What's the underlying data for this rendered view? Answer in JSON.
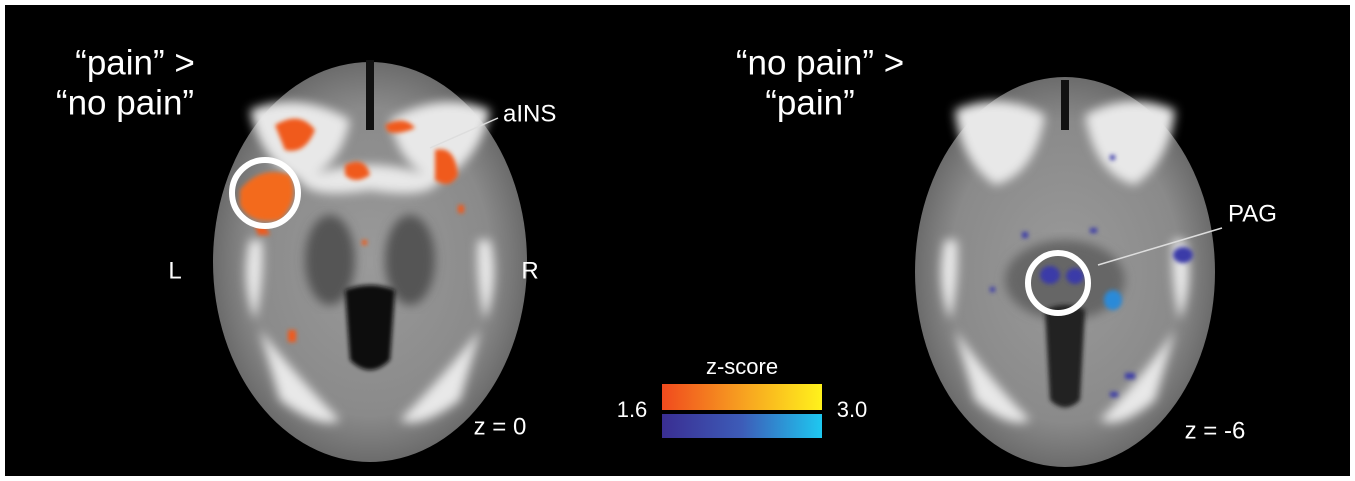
{
  "panels": [
    {
      "title": [
        "“pain” >",
        "“no pain”"
      ],
      "labels": {
        "region": "aINS",
        "left": "L",
        "right": "R",
        "slice": "z = 0"
      }
    },
    {
      "title": [
        "“no pain” >",
        "“pain”"
      ],
      "labels": {
        "region": "PAG",
        "slice": "z = -6"
      }
    }
  ],
  "colorbar": {
    "title": "z-score",
    "min": "1.6",
    "max": "3.0"
  }
}
